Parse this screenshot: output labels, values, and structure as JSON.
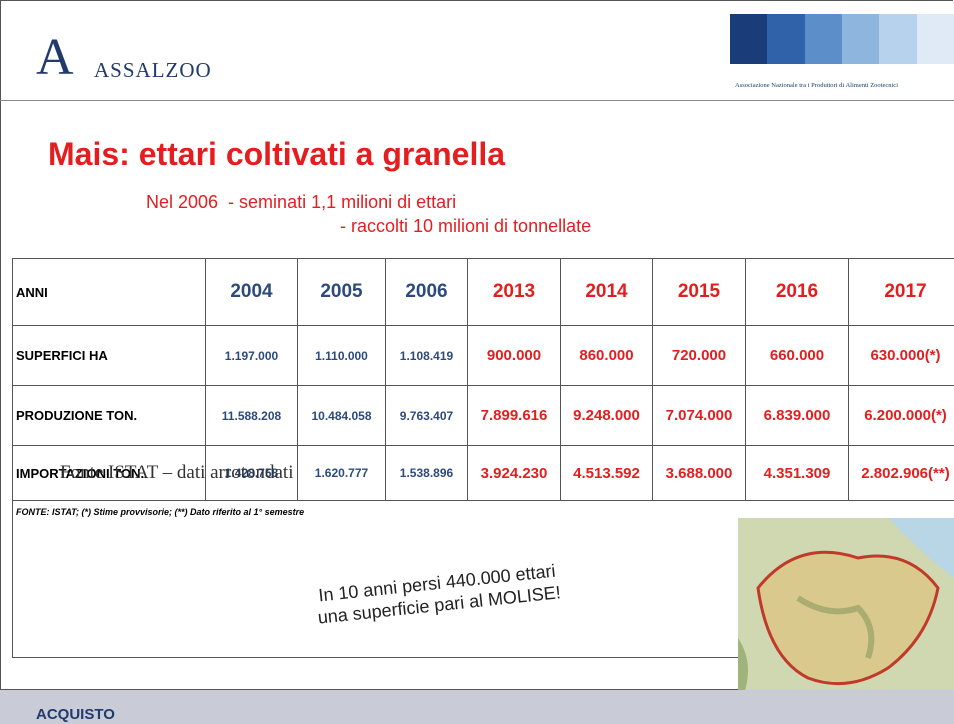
{
  "header": {
    "logo": "ASSALZOO",
    "tagline": "Associazione Nazionale tra i Produttori di Alimenti Zootecnici"
  },
  "title": "Mais: ettari coltivati a granella",
  "subtitle": [
    "Nel 2006  - seminati 1,1 milioni di ettari",
    "- raccolti 10 milioni di tonnellate"
  ],
  "table": {
    "columns": [
      "ANNI",
      "2004",
      "2005",
      "2006",
      "2013",
      "2014",
      "2015",
      "2016",
      "2017"
    ],
    "rows": [
      [
        "SUPERFICI        HA",
        "1.197.000",
        "1.110.000",
        "1.108.419",
        "900.000",
        "860.000",
        "720.000",
        "660.000",
        "630.000(*)"
      ],
      [
        "PRODUZIONE  TON.",
        "11.588.208",
        "10.484.058",
        "9.763.407",
        "7.899.616",
        "9.248.000",
        "7.074.000",
        "6.839.000",
        "6.200.000(*)"
      ],
      [
        "IMPORTAZIONI TON.",
        "1.428.758",
        "1.620.777",
        "1.538.896",
        "3.924.230",
        "4.513.592",
        "3.688.000",
        "4.351.309",
        "2.802.906(**)"
      ]
    ],
    "footnote": "FONTE: ISTAT;   (*) Stime provvisorie;   (**)  Dato riferito al 1° semestre"
  },
  "overlay": "Fonte ISTAT – dati arrotondati",
  "callout": [
    "In 10 anni persi 440.000 ettari",
    "una superficie pari al MOLISE!"
  ],
  "footer": "ACQUISTO"
}
